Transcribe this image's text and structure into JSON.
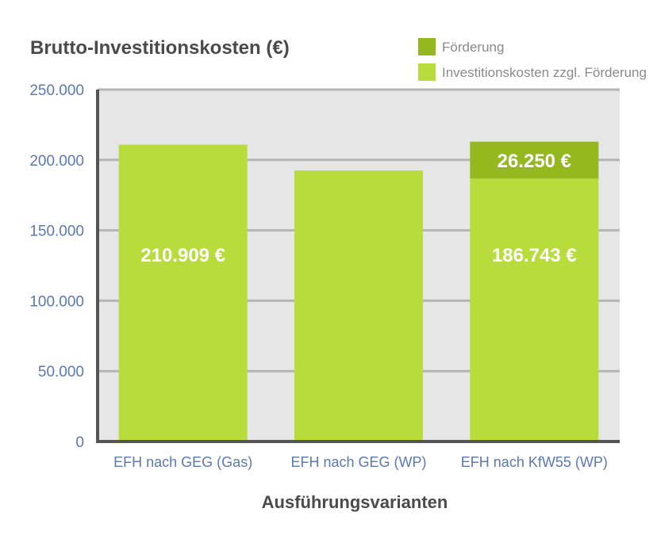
{
  "chart_data": {
    "type": "bar",
    "stacked": true,
    "title": "Brutto-Investitionskosten (€)",
    "xlabel": "Ausführungsvarianten",
    "ylabel": "",
    "ylim": [
      0,
      250000
    ],
    "y_ticks": [
      0,
      50000,
      100000,
      150000,
      200000,
      250000
    ],
    "y_tick_labels": [
      "0",
      "50.000",
      "100.000",
      "150.000",
      "200.000",
      "250.000"
    ],
    "grid": true,
    "legend_position": "top-right",
    "categories": [
      "EFH nach GEG (Gas)",
      "EFH nach GEG (WP)",
      "EFH nach KfW55 (WP)"
    ],
    "series": [
      {
        "name": "Investitionskosten zzgl. Förderung",
        "color": "#b8dc3c",
        "values": [
          210909,
          192500,
          186743
        ],
        "data_labels": [
          "210.909 €",
          "",
          "186.743 €"
        ]
      },
      {
        "name": "Förderung",
        "color": "#94b81e",
        "values": [
          0,
          0,
          26250
        ],
        "data_labels": [
          "",
          "",
          "26.250 €"
        ]
      }
    ],
    "legend_order": [
      "Förderung",
      "Investitionskosten zzgl. Förderung"
    ],
    "colors": {
      "plot_background": "#e6e6e6",
      "gridline": "#b4b4b4",
      "axis": "#555555"
    }
  }
}
